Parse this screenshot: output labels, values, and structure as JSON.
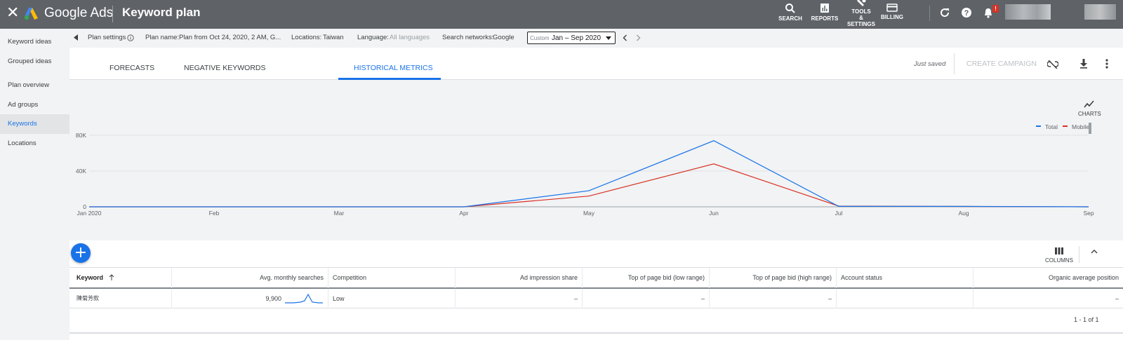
{
  "topbar": {
    "brand": "Google Ads",
    "title": "Keyword plan",
    "buttons": {
      "search": "SEARCH",
      "reports": "REPORTS",
      "tools_l1": "TOOLS",
      "tools_l2": "&",
      "tools_l3": "SETTINGS",
      "billing": "BILLING"
    },
    "notification_badge": "!",
    "icons": [
      "close-icon",
      "google-ads-logo",
      "search-icon",
      "reports-icon",
      "wrench-icon",
      "billing-card-icon",
      "refresh-icon",
      "help-icon",
      "bell-icon"
    ]
  },
  "sidebar": {
    "items": [
      {
        "label": "Keyword ideas",
        "active": false
      },
      {
        "label": "Grouped ideas",
        "active": false
      },
      {
        "label": "Plan overview",
        "active": false
      },
      {
        "label": "Ad groups",
        "active": false
      },
      {
        "label": "Keywords",
        "active": true
      },
      {
        "label": "Locations",
        "active": false
      }
    ]
  },
  "settings": {
    "plan_settings": "Plan settings",
    "plan_name_label": "Plan name:",
    "plan_name_value": "Plan from Oct 24, 2020, 2 AM, G...",
    "locations_label": "Locations:",
    "locations_value": "Taiwan",
    "language_label": "Language:",
    "language_value": "All languages",
    "networks_label": "Search networks:",
    "networks_value": "Google",
    "date_custom": "Custom",
    "date_range": "Jan – Sep 2020"
  },
  "tabs": [
    {
      "label": "FORECASTS",
      "active": false
    },
    {
      "label": "NEGATIVE KEYWORDS",
      "active": false
    },
    {
      "label": "HISTORICAL METRICS",
      "active": true
    }
  ],
  "toolbar": {
    "saved": "Just saved",
    "create_campaign": "CREATE CAMPAIGN",
    "charts_label": "CHARTS",
    "columns_label": "COLUMNS"
  },
  "chart_data": {
    "type": "line",
    "categories": [
      "Jan 2020",
      "Feb",
      "Mar",
      "Apr",
      "May",
      "Jun",
      "Jul",
      "Aug",
      "Sep"
    ],
    "series": [
      {
        "name": "Total",
        "color": "#1a73e8",
        "values": [
          0,
          0,
          0,
          0,
          18000,
          74000,
          500,
          500,
          0
        ]
      },
      {
        "name": "Mobile",
        "color": "#d93025",
        "values": [
          0,
          0,
          0,
          0,
          12000,
          48000,
          800,
          400,
          0
        ]
      }
    ],
    "yticks": [
      "0",
      "40K",
      "80K"
    ],
    "ylim": [
      0,
      80000
    ],
    "legend_position": "top-right",
    "grid": true
  },
  "table": {
    "headers": [
      "Keyword",
      "Avg. monthly searches",
      "Competition",
      "Ad impression share",
      "Top of page bid (low range)",
      "Top of page bid (high range)",
      "Account status",
      "Organic average position"
    ],
    "rows": [
      {
        "keyword": "陳菊芳款",
        "avg_searches": "9,900",
        "competition": "Low",
        "impression_share": "–",
        "bid_low": "–",
        "bid_high": "–",
        "account_status": "",
        "organic_position": "–"
      }
    ],
    "pagination": "1 - 1 of 1"
  }
}
